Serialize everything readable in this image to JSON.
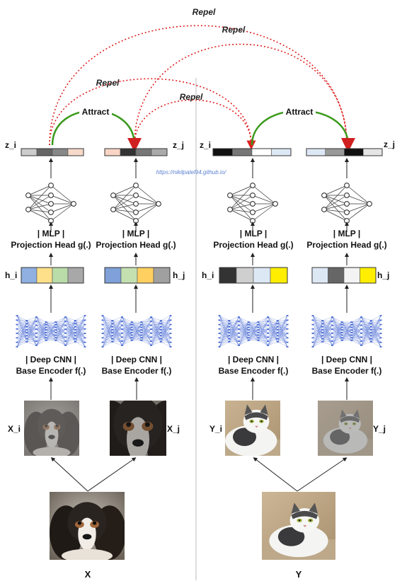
{
  "labels": {
    "repel": "Repel",
    "attract": "Attract",
    "z_i": "z_i",
    "z_j": "z_j",
    "h_i": "h_i",
    "h_j": "h_j",
    "X_i": "X_i",
    "X_j": "X_j",
    "Y_i": "Y_i",
    "Y_j": "Y_j",
    "X": "X",
    "Y": "Y",
    "mlp": "| MLP |",
    "projection_head": "Projection Head g(.)",
    "deep_cnn": "| Deep CNN |",
    "base_encoder": "Base Encoder f(.)",
    "url": "https://nikilpatel94.github.io/"
  },
  "images": {
    "X": "dog",
    "X_i": "dog",
    "X_j": "dog",
    "Y": "cat",
    "Y_i": "cat",
    "Y_j": "cat"
  },
  "colors": {
    "repel": "#e02020",
    "attract": "#3a9a1a",
    "divider": "#bbbbbb",
    "encoder": "#3b5fd0"
  },
  "vectors": {
    "h_X_i": [
      "#8fb0e0",
      "#ffe08a",
      "#b9dca8",
      "#a8a8a8"
    ],
    "h_X_j": [
      "#7fa0d8",
      "#c5e0b0",
      "#ffd060",
      "#a0a0a0"
    ],
    "h_Y_i": [
      "#333333",
      "#cfcfcf",
      "#dde8f5",
      "#ffee00"
    ],
    "h_Y_j": [
      "#dde8f5",
      "#666666",
      "#f3f3f3",
      "#ffee00"
    ],
    "z_X_i": [
      "#cccccc",
      "#666666",
      "#888888",
      "#f7d9c9"
    ],
    "z_X_j": [
      "#f9d4c4",
      "#333333",
      "#777777",
      "#aaaaaa"
    ],
    "z_Y_i": [
      "#111111",
      "#777777",
      "#ffffff",
      "#dde8f5"
    ],
    "z_Y_j": [
      "#dde8f5",
      "#999999",
      "#111111",
      "#e5e5e5"
    ]
  }
}
